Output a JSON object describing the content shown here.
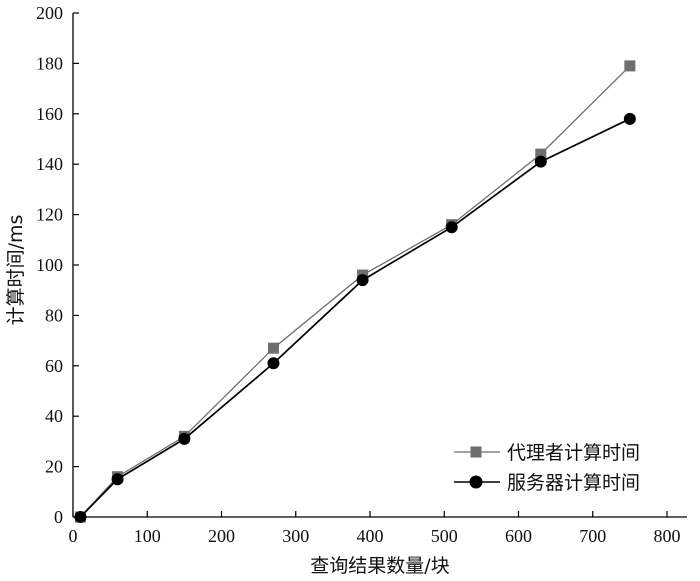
{
  "chart_data": {
    "type": "line",
    "xlabel": "查询结果数量/块",
    "ylabel": "计算时间/ms",
    "xlim": [
      0,
      800
    ],
    "ylim": [
      0,
      200
    ],
    "xticks": [
      0,
      100,
      200,
      300,
      400,
      500,
      600,
      700,
      800
    ],
    "yticks": [
      0,
      20,
      40,
      60,
      80,
      100,
      120,
      140,
      160,
      180,
      200
    ],
    "grid": false,
    "legend_position": "bottom-right",
    "x": [
      10,
      60,
      150,
      270,
      390,
      510,
      630,
      750
    ],
    "series": [
      {
        "name": "代理者计算时间",
        "values": [
          0,
          16,
          32,
          67,
          96,
          116,
          144,
          179
        ],
        "color": "#6e6e6e",
        "marker": "square"
      },
      {
        "name": "服务器计算时间",
        "values": [
          0,
          15,
          31,
          61,
          94,
          115,
          141,
          158
        ],
        "color": "#000000",
        "marker": "circle"
      }
    ]
  }
}
